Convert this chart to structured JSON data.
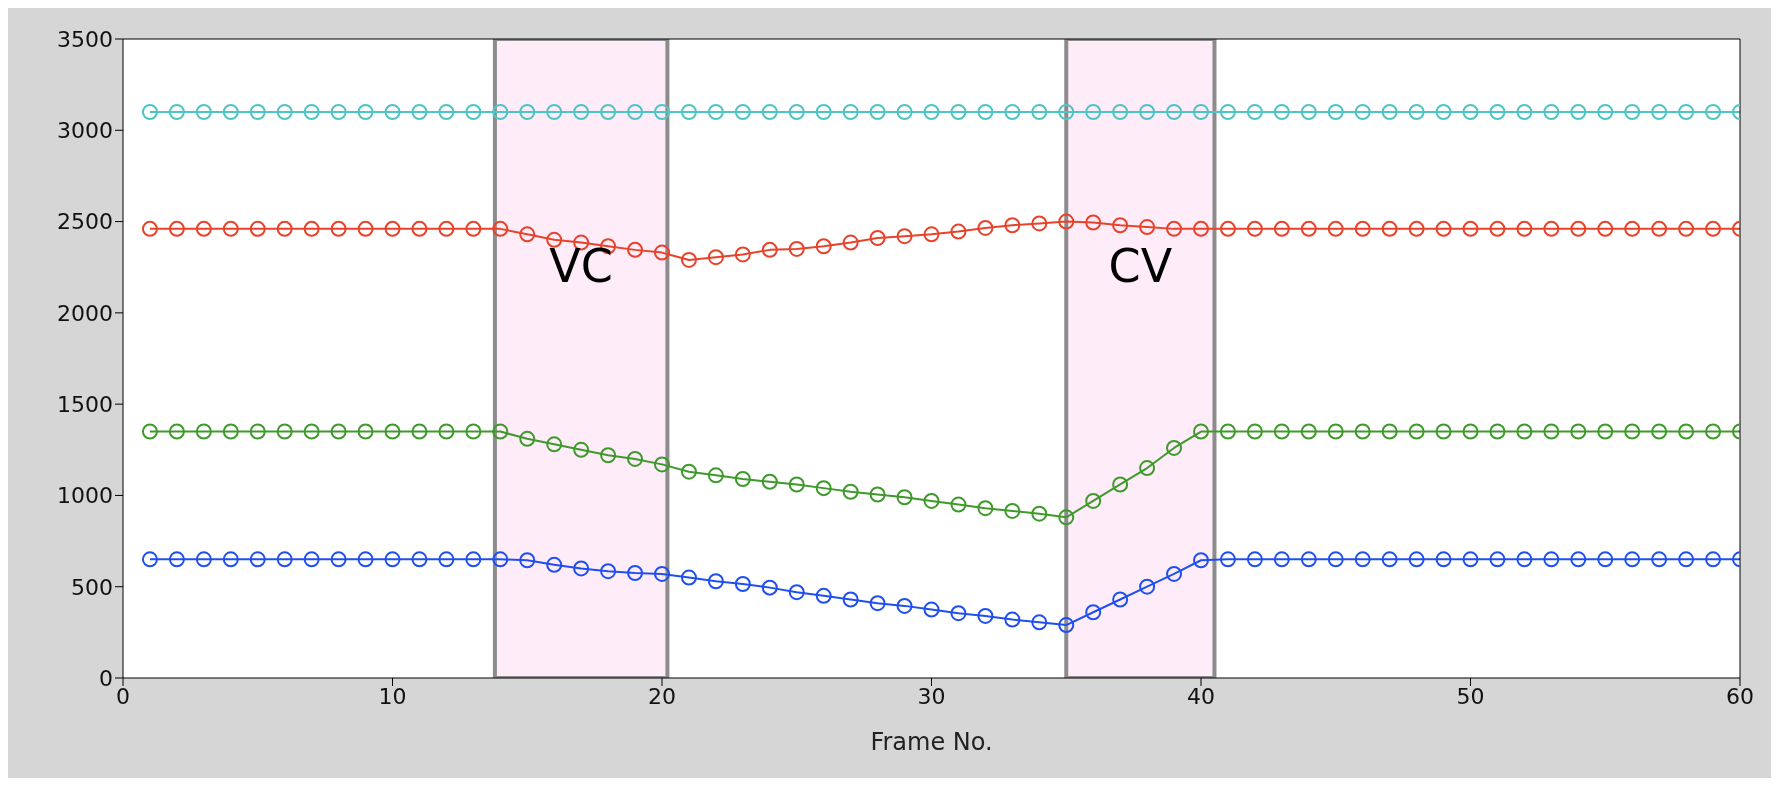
{
  "chart_data": {
    "type": "line",
    "xlabel": "Frame No.",
    "x": [
      1,
      2,
      3,
      4,
      5,
      6,
      7,
      8,
      9,
      10,
      11,
      12,
      13,
      14,
      15,
      16,
      17,
      18,
      19,
      20,
      21,
      22,
      23,
      24,
      25,
      26,
      27,
      28,
      29,
      30,
      31,
      32,
      33,
      34,
      35,
      36,
      37,
      38,
      39,
      40,
      41,
      42,
      43,
      44,
      45,
      46,
      47,
      48,
      49,
      50,
      51,
      52,
      53,
      54,
      55,
      56,
      57,
      58,
      59,
      60
    ],
    "series": [
      {
        "color": "#4fc4c4",
        "values": [
          3100,
          3100,
          3100,
          3100,
          3100,
          3100,
          3100,
          3100,
          3100,
          3100,
          3100,
          3100,
          3100,
          3100,
          3100,
          3100,
          3100,
          3100,
          3100,
          3100,
          3100,
          3100,
          3100,
          3100,
          3100,
          3100,
          3100,
          3100,
          3100,
          3100,
          3100,
          3100,
          3100,
          3100,
          3100,
          3100,
          3100,
          3100,
          3100,
          3100,
          3100,
          3100,
          3100,
          3100,
          3100,
          3100,
          3100,
          3100,
          3100,
          3100,
          3100,
          3100,
          3100,
          3100,
          3100,
          3100,
          3100,
          3100,
          3100,
          3100
        ]
      },
      {
        "color": "#e8432a",
        "values": [
          2460,
          2460,
          2460,
          2460,
          2460,
          2460,
          2460,
          2460,
          2460,
          2460,
          2460,
          2460,
          2460,
          2460,
          2430,
          2400,
          2385,
          2365,
          2345,
          2330,
          2290,
          2305,
          2320,
          2345,
          2350,
          2365,
          2385,
          2410,
          2420,
          2430,
          2445,
          2465,
          2480,
          2490,
          2500,
          2495,
          2480,
          2470,
          2460,
          2460,
          2460,
          2460,
          2460,
          2460,
          2460,
          2460,
          2460,
          2460,
          2460,
          2460,
          2460,
          2460,
          2460,
          2460,
          2460,
          2460,
          2460,
          2460,
          2460,
          2460
        ]
      },
      {
        "color": "#3e9a2a",
        "values": [
          1350,
          1350,
          1350,
          1350,
          1350,
          1350,
          1350,
          1350,
          1350,
          1350,
          1350,
          1350,
          1350,
          1350,
          1310,
          1280,
          1250,
          1220,
          1200,
          1170,
          1130,
          1110,
          1090,
          1075,
          1060,
          1040,
          1020,
          1005,
          990,
          970,
          950,
          930,
          915,
          900,
          880,
          970,
          1060,
          1150,
          1260,
          1350,
          1350,
          1350,
          1350,
          1350,
          1350,
          1350,
          1350,
          1350,
          1350,
          1350,
          1350,
          1350,
          1350,
          1350,
          1350,
          1350,
          1350,
          1350,
          1350,
          1350
        ]
      },
      {
        "color": "#1f4ff0",
        "values": [
          650,
          650,
          650,
          650,
          650,
          650,
          650,
          650,
          650,
          650,
          650,
          650,
          650,
          650,
          645,
          620,
          600,
          585,
          575,
          570,
          550,
          530,
          515,
          495,
          470,
          450,
          430,
          410,
          395,
          375,
          355,
          340,
          320,
          305,
          290,
          360,
          430,
          500,
          570,
          645,
          650,
          650,
          650,
          650,
          650,
          650,
          650,
          650,
          650,
          650,
          650,
          650,
          650,
          650,
          650,
          650,
          650,
          650,
          650,
          650
        ]
      }
    ],
    "xlim": [
      0,
      60
    ],
    "xticks": [
      0,
      10,
      20,
      30,
      40,
      50,
      60
    ],
    "ylim": [
      0,
      3500
    ],
    "yticks": [
      0,
      500,
      1000,
      1500,
      2000,
      2500,
      3000,
      3500
    ],
    "marker": "circle",
    "line_style": "solid",
    "bands": [
      {
        "axis": "x",
        "from": 13.8,
        "to": 20.2,
        "label": "VC",
        "color": "#fde0f5"
      },
      {
        "axis": "x",
        "from": 35,
        "to": 40.5,
        "label": "CV",
        "color": "#fde0f5"
      }
    ]
  }
}
